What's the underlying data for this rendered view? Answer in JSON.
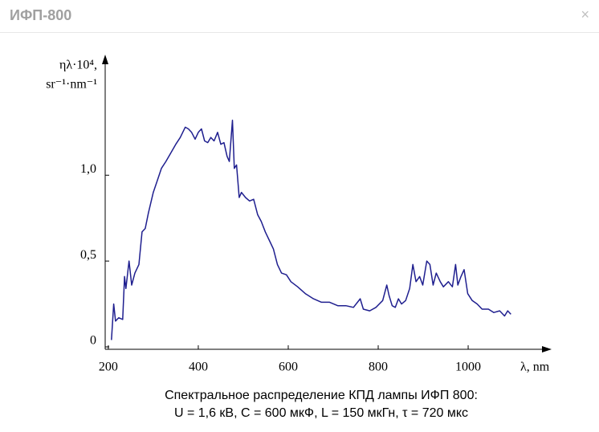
{
  "header": {
    "title": "ИФП-800",
    "close": "×"
  },
  "chart_data": {
    "type": "line",
    "caption": [
      "Спектральное распределение КПД лампы ИФП 800:",
      "U = 1,6 кВ, C = 600 мкФ, L = 150 мкГн, τ = 720 мкс"
    ],
    "y_label": [
      "ηλ·10⁴,",
      "sr⁻¹·nm⁻¹"
    ],
    "x_label": "λ, nm",
    "color": "#1f1f8f",
    "xlim": [
      193,
      1182
    ],
    "ylim": [
      0,
      1.67
    ],
    "xticks": [
      200,
      400,
      600,
      800,
      1000
    ],
    "yticks": [
      0,
      {
        "value": 0.5,
        "label": "0,5"
      },
      {
        "value": 1.0,
        "label": "1,0"
      }
    ],
    "x": [
      207,
      212,
      216,
      223,
      232,
      236,
      239,
      246,
      252,
      259,
      268,
      275,
      282,
      289,
      300,
      309,
      318,
      328,
      339,
      350,
      360,
      371,
      378,
      385,
      393,
      400,
      407,
      414,
      421,
      428,
      435,
      443,
      450,
      457,
      464,
      469,
      476,
      480,
      485,
      491,
      496,
      505,
      514,
      523,
      532,
      540,
      549,
      558,
      567,
      576,
      585,
      596,
      606,
      621,
      638,
      656,
      674,
      692,
      710,
      728,
      745,
      760,
      767,
      781,
      795,
      810,
      819,
      824,
      831,
      838,
      845,
      852,
      861,
      870,
      877,
      884,
      892,
      899,
      908,
      915,
      922,
      929,
      938,
      945,
      956,
      965,
      972,
      977,
      984,
      991,
      999,
      1009,
      1020,
      1031,
      1045,
      1057,
      1070,
      1081,
      1088,
      1095
    ],
    "values": [
      0.04,
      0.25,
      0.15,
      0.17,
      0.16,
      0.41,
      0.34,
      0.5,
      0.36,
      0.43,
      0.48,
      0.67,
      0.69,
      0.78,
      0.9,
      0.97,
      1.04,
      1.08,
      1.13,
      1.18,
      1.22,
      1.28,
      1.27,
      1.25,
      1.21,
      1.25,
      1.27,
      1.2,
      1.19,
      1.22,
      1.2,
      1.25,
      1.18,
      1.19,
      1.11,
      1.08,
      1.32,
      1.04,
      1.06,
      0.87,
      0.9,
      0.87,
      0.85,
      0.86,
      0.77,
      0.73,
      0.67,
      0.62,
      0.57,
      0.48,
      0.43,
      0.42,
      0.38,
      0.35,
      0.31,
      0.28,
      0.26,
      0.26,
      0.24,
      0.24,
      0.23,
      0.28,
      0.22,
      0.21,
      0.23,
      0.27,
      0.36,
      0.3,
      0.24,
      0.23,
      0.28,
      0.25,
      0.27,
      0.34,
      0.48,
      0.38,
      0.41,
      0.36,
      0.5,
      0.48,
      0.36,
      0.43,
      0.38,
      0.35,
      0.38,
      0.35,
      0.48,
      0.36,
      0.41,
      0.45,
      0.31,
      0.27,
      0.25,
      0.22,
      0.22,
      0.2,
      0.21,
      0.18,
      0.21,
      0.19
    ]
  }
}
